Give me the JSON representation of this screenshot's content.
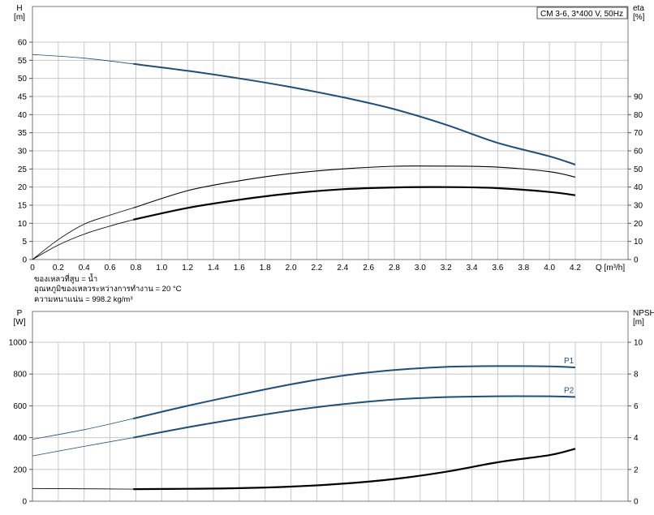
{
  "title_box": "CM 3-6, 3*400 V, 50Hz",
  "notes": [
    "ของเหลวที่สูบ = น้ำ",
    "อุณหภูมิของเหลวระหว่างการทำงาน = 20 °C",
    "ความหนาแน่น = 998.2 kg/m³"
  ],
  "colors": {
    "blue": "#1a4f7e",
    "black": "#000000",
    "grid": "#c8c8c8"
  },
  "chart_data": [
    {
      "type": "line",
      "name": "head-efficiency",
      "xlabel": "Q [m³/h]",
      "ylabel_left": [
        "H",
        "[m]"
      ],
      "ylabel_right": [
        "eta",
        "[%]"
      ],
      "xlim": [
        0,
        4.2
      ],
      "ylim_left": [
        0,
        60
      ],
      "ylim_right": [
        0,
        90
      ],
      "xticks": [
        "0",
        "0.2",
        "0.4",
        "0.6",
        "0.8",
        "1.0",
        "1.2",
        "1.4",
        "1.6",
        "1.8",
        "2.0",
        "2.2",
        "2.4",
        "2.6",
        "2.8",
        "3.0",
        "3.2",
        "3.4",
        "3.6",
        "3.8",
        "4.0",
        "4.2"
      ],
      "yticks_left": [
        0,
        5,
        10,
        15,
        20,
        25,
        30,
        35,
        40,
        45,
        50,
        55,
        60
      ],
      "yticks_right": [
        0,
        10,
        20,
        30,
        40,
        50,
        60,
        70,
        80,
        90
      ],
      "grid": true,
      "series": [
        {
          "axis": "left",
          "color": "#1a4f7e",
          "thin_until": 0.78,
          "x": [
            0,
            0.4,
            0.78,
            1.2,
            1.6,
            2.0,
            2.4,
            2.8,
            3.2,
            3.6,
            4.0,
            4.2
          ],
          "y": [
            56.6,
            55.6,
            54.0,
            52.1,
            50.0,
            47.6,
            44.8,
            41.5,
            37.2,
            32.2,
            28.5,
            26.2
          ]
        },
        {
          "axis": "right",
          "color": "#000000",
          "thin_until": 0.78,
          "heavy": false,
          "x": [
            0,
            0.2,
            0.4,
            0.6,
            0.78,
            1.2,
            1.6,
            2.0,
            2.4,
            2.8,
            3.2,
            3.6,
            4.0,
            4.2
          ],
          "y": [
            0,
            11,
            19.5,
            24.5,
            28.5,
            38,
            43.5,
            47.5,
            50,
            51.5,
            51.6,
            51,
            48.5,
            45.5
          ]
        },
        {
          "axis": "right",
          "color": "#000000",
          "thin_until": 0.78,
          "heavy": true,
          "x": [
            0,
            0.2,
            0.4,
            0.6,
            0.78,
            1.2,
            1.6,
            2.0,
            2.4,
            2.8,
            3.2,
            3.6,
            4.0,
            4.2
          ],
          "y": [
            0,
            8,
            14,
            18.5,
            22,
            28.5,
            33,
            36.5,
            38.8,
            39.8,
            40,
            39.4,
            37.3,
            35.5
          ]
        }
      ]
    },
    {
      "type": "line",
      "name": "power-npsh",
      "ylabel_left": [
        "P",
        "[W]"
      ],
      "ylabel_right": [
        "NPSH",
        "[m]"
      ],
      "xlim": [
        0,
        4.2
      ],
      "ylim_left": [
        0,
        1000
      ],
      "ylim_right": [
        0,
        10
      ],
      "yticks_left": [
        0,
        200,
        400,
        600,
        800,
        1000
      ],
      "yticks_right": [
        0,
        2,
        4,
        6,
        8,
        10
      ],
      "grid": true,
      "series": [
        {
          "name": "P1",
          "axis": "left",
          "color": "#1a4f7e",
          "thin_until": 0.78,
          "x": [
            0,
            0.4,
            0.78,
            1.2,
            1.6,
            2.0,
            2.4,
            2.8,
            3.2,
            3.6,
            4.0,
            4.2
          ],
          "y": [
            390,
            450,
            520,
            600,
            670,
            735,
            790,
            825,
            845,
            850,
            848,
            842
          ]
        },
        {
          "name": "P2",
          "axis": "left",
          "color": "#1a4f7e",
          "thin_until": 0.78,
          "x": [
            0,
            0.4,
            0.78,
            1.2,
            1.6,
            2.0,
            2.4,
            2.8,
            3.2,
            3.6,
            4.0,
            4.2
          ],
          "y": [
            285,
            345,
            400,
            465,
            520,
            570,
            610,
            640,
            655,
            660,
            660,
            656
          ]
        },
        {
          "axis": "right",
          "color": "#000000",
          "thin_until": 0.78,
          "heavy": true,
          "x": [
            0,
            0.4,
            0.78,
            1.2,
            1.6,
            2.0,
            2.4,
            2.8,
            3.2,
            3.6,
            4.0,
            4.2
          ],
          "y": [
            0.8,
            0.78,
            0.76,
            0.78,
            0.82,
            0.92,
            1.1,
            1.4,
            1.85,
            2.45,
            2.9,
            3.3
          ]
        }
      ]
    }
  ]
}
